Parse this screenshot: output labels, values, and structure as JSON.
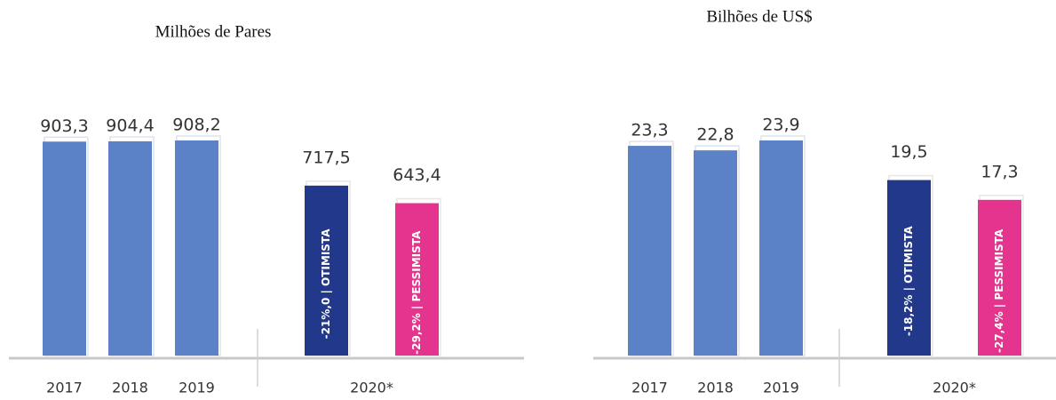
{
  "chart_data": [
    {
      "type": "bar",
      "title": "Milhões de Pares",
      "categories": [
        "2017",
        "2018",
        "2019",
        "2020*",
        null
      ],
      "values": [
        903.3,
        904.4,
        908.2,
        717.5,
        643.4
      ],
      "value_labels": [
        "903,3",
        "904,4",
        "908,2",
        "717,5",
        "643,4"
      ],
      "bar_labels": [
        null,
        null,
        null,
        "-21%,0 | OTIMISTA",
        "-29,2% | PESSIMISTA"
      ],
      "colors": [
        "#5b82c6",
        "#5b82c6",
        "#5b82c6",
        "#22388a",
        "#e4348e"
      ]
    },
    {
      "type": "bar",
      "title": "Bilhões de US$",
      "categories": [
        "2017",
        "2018",
        "2019",
        "2020*",
        null
      ],
      "values": [
        23.3,
        22.8,
        23.9,
        19.5,
        17.3
      ],
      "value_labels": [
        "23,3",
        "22,8",
        "23,9",
        "19,5",
        "17,3"
      ],
      "bar_labels": [
        null,
        null,
        null,
        "-18,2% | OTIMISTA",
        "-27,4% | PESSIMISTA"
      ],
      "colors": [
        "#5b82c6",
        "#5b82c6",
        "#5b82c6",
        "#22388a",
        "#e4348e"
      ]
    }
  ]
}
